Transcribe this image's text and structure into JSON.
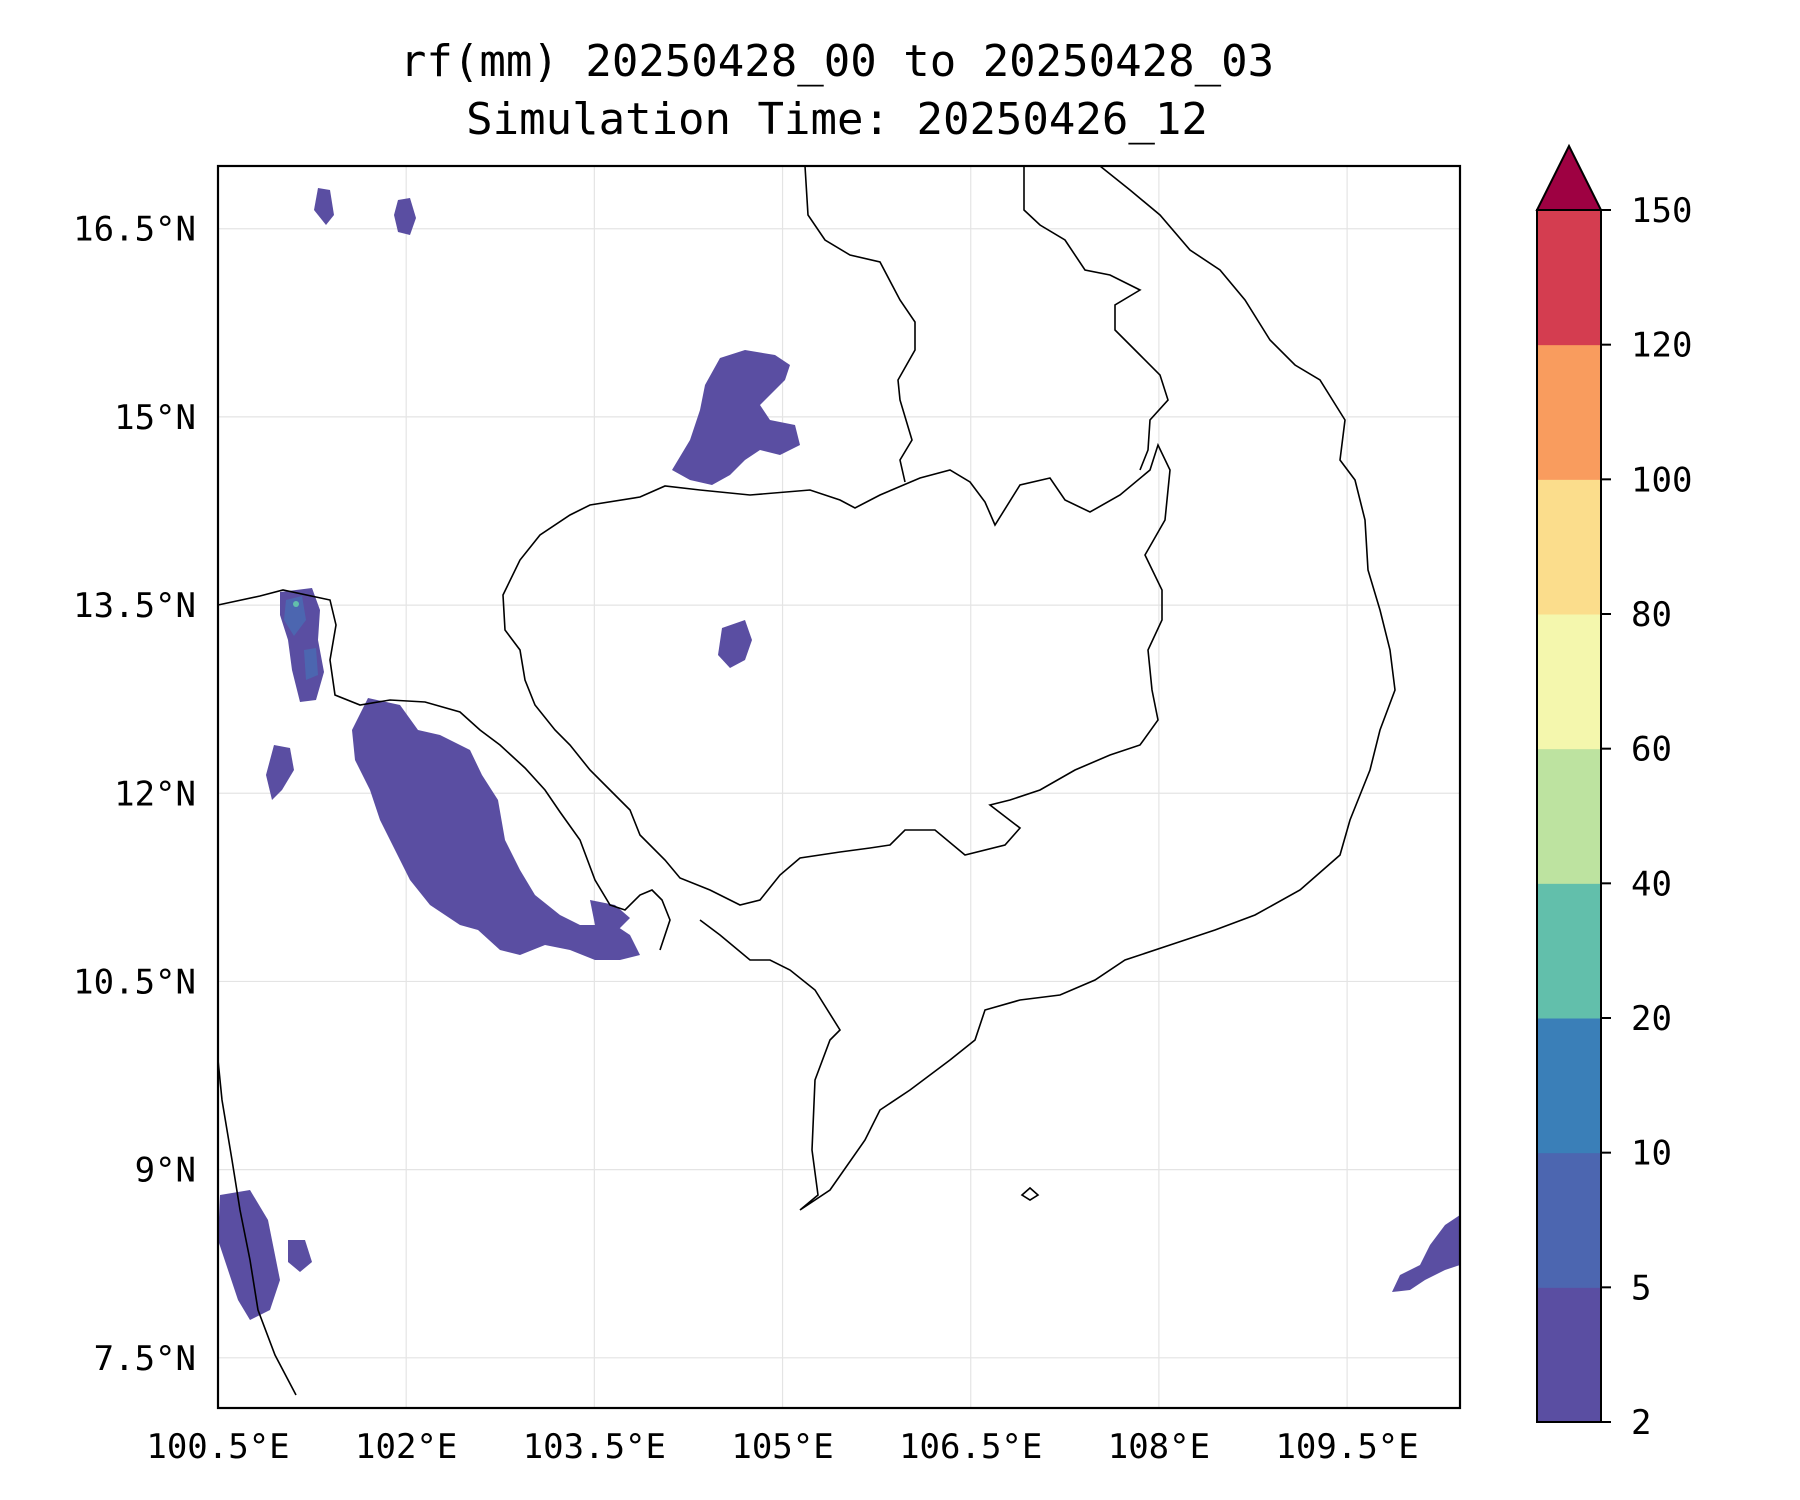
{
  "title": {
    "line1": "rf(mm) 20250428_00 to 20250428_03",
    "line2": "Simulation Time: 20250426_12"
  },
  "map": {
    "lon_range": [
      100.5,
      110.4
    ],
    "lat_range": [
      7.1,
      17.0
    ],
    "lon_ticks": [
      "100.5°E",
      "102°E",
      "103.5°E",
      "105°E",
      "106.5°E",
      "108°E",
      "109.5°E"
    ],
    "lat_ticks": [
      "16.5°N",
      "15°N",
      "13.5°N",
      "12°N",
      "10.5°N",
      "9°N",
      "7.5°N"
    ],
    "grid": true
  },
  "colorbar": {
    "levels": [
      "2",
      "5",
      "10",
      "20",
      "40",
      "60",
      "80",
      "100",
      "120",
      "150"
    ],
    "colors": [
      "#5a4ea2",
      "#4c66b0",
      "#3a7fb8",
      "#62bfab",
      "#bde3a0",
      "#f4f7ad",
      "#fbdd8c",
      "#f99c5e",
      "#d43d50",
      "#9e0142"
    ],
    "extend": "max"
  }
}
